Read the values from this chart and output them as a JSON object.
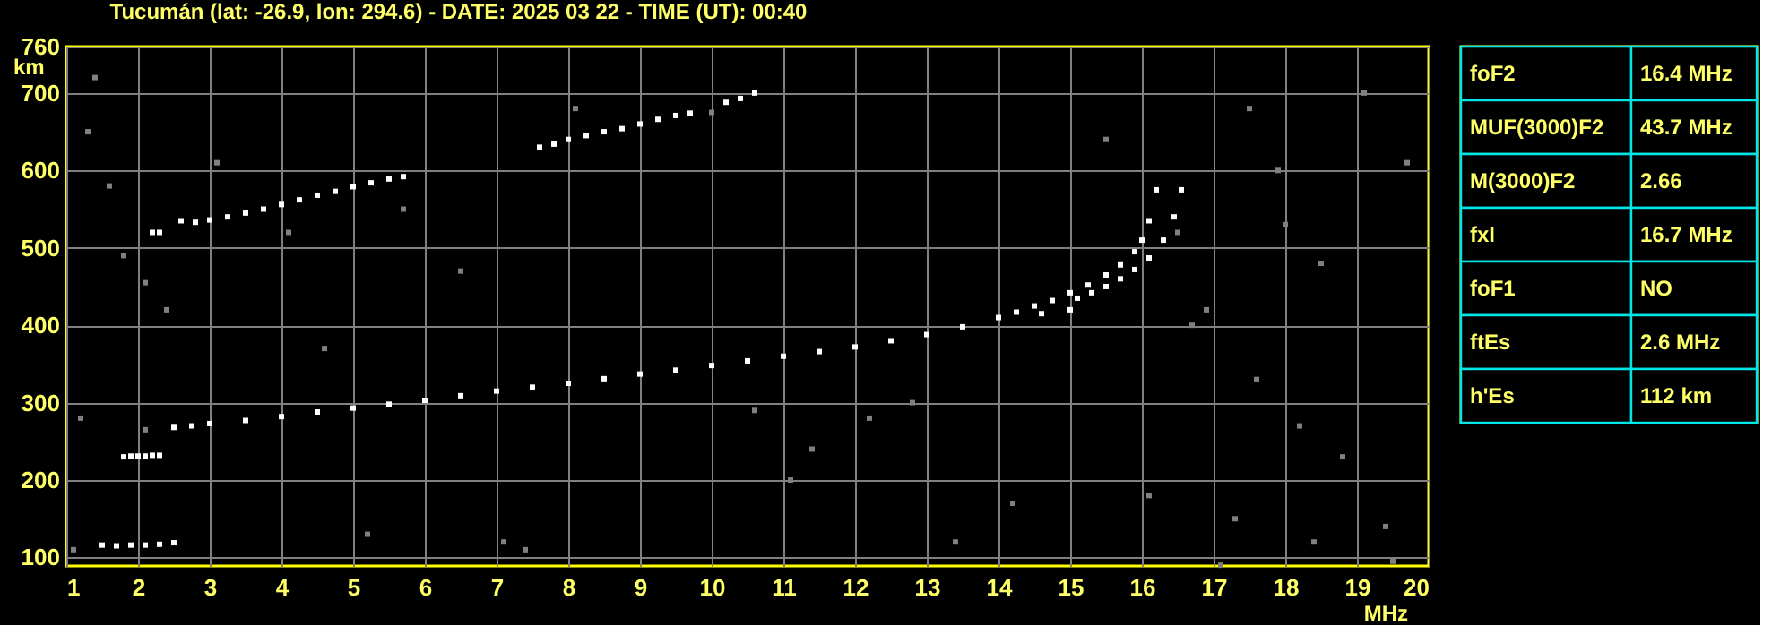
{
  "chart_data": [
    {
      "type": "scatter",
      "title": "Tucumán (lat: -26.9, lon: 294.6) - DATE: 2025 03 22 - TIME (UT): 00:40",
      "xlabel": "MHz",
      "ylabel": "km",
      "xlim": [
        1,
        20
      ],
      "ylim": [
        89,
        760
      ],
      "xticks": [
        1,
        2,
        3,
        4,
        5,
        6,
        7,
        8,
        9,
        10,
        11,
        12,
        13,
        14,
        15,
        16,
        17,
        18,
        19,
        20
      ],
      "yticks": [
        100,
        200,
        300,
        400,
        500,
        600,
        700,
        760
      ],
      "grid": true,
      "marker": "square",
      "series": [
        {
          "color": "#ffffff",
          "x": [
            2.5,
            2.75,
            3,
            3.5,
            4,
            4.5,
            5,
            5.5,
            6,
            6.5,
            7,
            7.5,
            8,
            8.5,
            9,
            9.5,
            10,
            10.5,
            11,
            11.5,
            12,
            12.5,
            13,
            13.5,
            14,
            14.25,
            14.5,
            14.75,
            15,
            15.25,
            15.5,
            15.7,
            15.9,
            16,
            16.1,
            16.2
          ],
          "values": [
            268,
            270,
            273,
            277,
            282,
            288,
            293,
            298,
            303,
            309,
            315,
            320,
            325,
            331,
            337,
            342,
            348,
            354,
            360,
            366,
            372,
            380,
            388,
            398,
            410,
            417,
            425,
            432,
            442,
            452,
            465,
            478,
            495,
            510,
            535,
            575
          ]
        },
        {
          "color": "#ffffff",
          "x": [
            14.6,
            15.0,
            15.1,
            15.3,
            15.5,
            15.7,
            15.9,
            16.1,
            16.3,
            16.45,
            16.55
          ],
          "values": [
            415,
            420,
            435,
            442,
            450,
            460,
            472,
            487,
            510,
            540,
            575
          ]
        },
        {
          "color": "#ffffff",
          "x": [
            1.5,
            1.7,
            1.9,
            2.1,
            2.3,
            2.5
          ],
          "values": [
            116,
            115,
            116,
            116,
            117,
            119
          ]
        },
        {
          "color": "#ffffff",
          "x": [
            1.8,
            1.9,
            2.0,
            2.1,
            2.2,
            2.3
          ],
          "values": [
            230,
            231,
            231,
            231,
            232,
            232
          ]
        },
        {
          "color": "#ffffff",
          "x": [
            2.2,
            2.3,
            2.6,
            2.8,
            3,
            3.25,
            3.5,
            3.75,
            4,
            4.25,
            4.5,
            4.75,
            5,
            5.25,
            5.5,
            5.7
          ],
          "values": [
            520,
            520,
            535,
            533,
            536,
            540,
            545,
            550,
            556,
            562,
            568,
            573,
            579,
            584,
            589,
            592
          ]
        },
        {
          "color": "#ffffff",
          "x": [
            7.6,
            7.8,
            8,
            8.25,
            8.5,
            8.75,
            9,
            9.25,
            9.5,
            9.7,
            10.2,
            10.4,
            10.6
          ],
          "values": [
            630,
            634,
            640,
            645,
            650,
            654,
            660,
            666,
            671,
            674,
            688,
            693,
            700
          ]
        },
        {
          "color": "#808080",
          "x": [
            1.1,
            1.3,
            1.4,
            1.6,
            1.8,
            2.1,
            2.4,
            3.1,
            4.1,
            5.2,
            5.7,
            6.5,
            7.1,
            7.4,
            8.1,
            10.0,
            10.6,
            11.4,
            12.2,
            12.8,
            13.4,
            14.2,
            15.5,
            16.1,
            16.5,
            16.9,
            17.3,
            17.6,
            17.9,
            18.2,
            18.5,
            18.8,
            19.1,
            19.4,
            19.7,
            1.2,
            2.1,
            4.6,
            11.1,
            17.1,
            18.0,
            19.5,
            16.7,
            17.5,
            18.4
          ],
          "values": [
            110,
            650,
            720,
            580,
            490,
            455,
            420,
            610,
            520,
            130,
            550,
            470,
            120,
            110,
            680,
            675,
            290,
            240,
            280,
            300,
            120,
            170,
            640,
            180,
            520,
            420,
            150,
            330,
            600,
            270,
            480,
            230,
            700,
            140,
            610,
            280,
            265,
            370,
            200,
            90,
            530,
            95,
            400,
            680,
            120
          ]
        }
      ]
    },
    {
      "type": "other",
      "annotations": [
        "foF2",
        "16.4 MHz",
        "MUF(3000)F2",
        "43.7 MHz",
        "M(3000)F2",
        "2.66",
        "fxI",
        "16.7 MHz",
        "foF1",
        "NO",
        "ftEs",
        "2.6 MHz",
        "h'Es",
        "112 km"
      ]
    }
  ]
}
